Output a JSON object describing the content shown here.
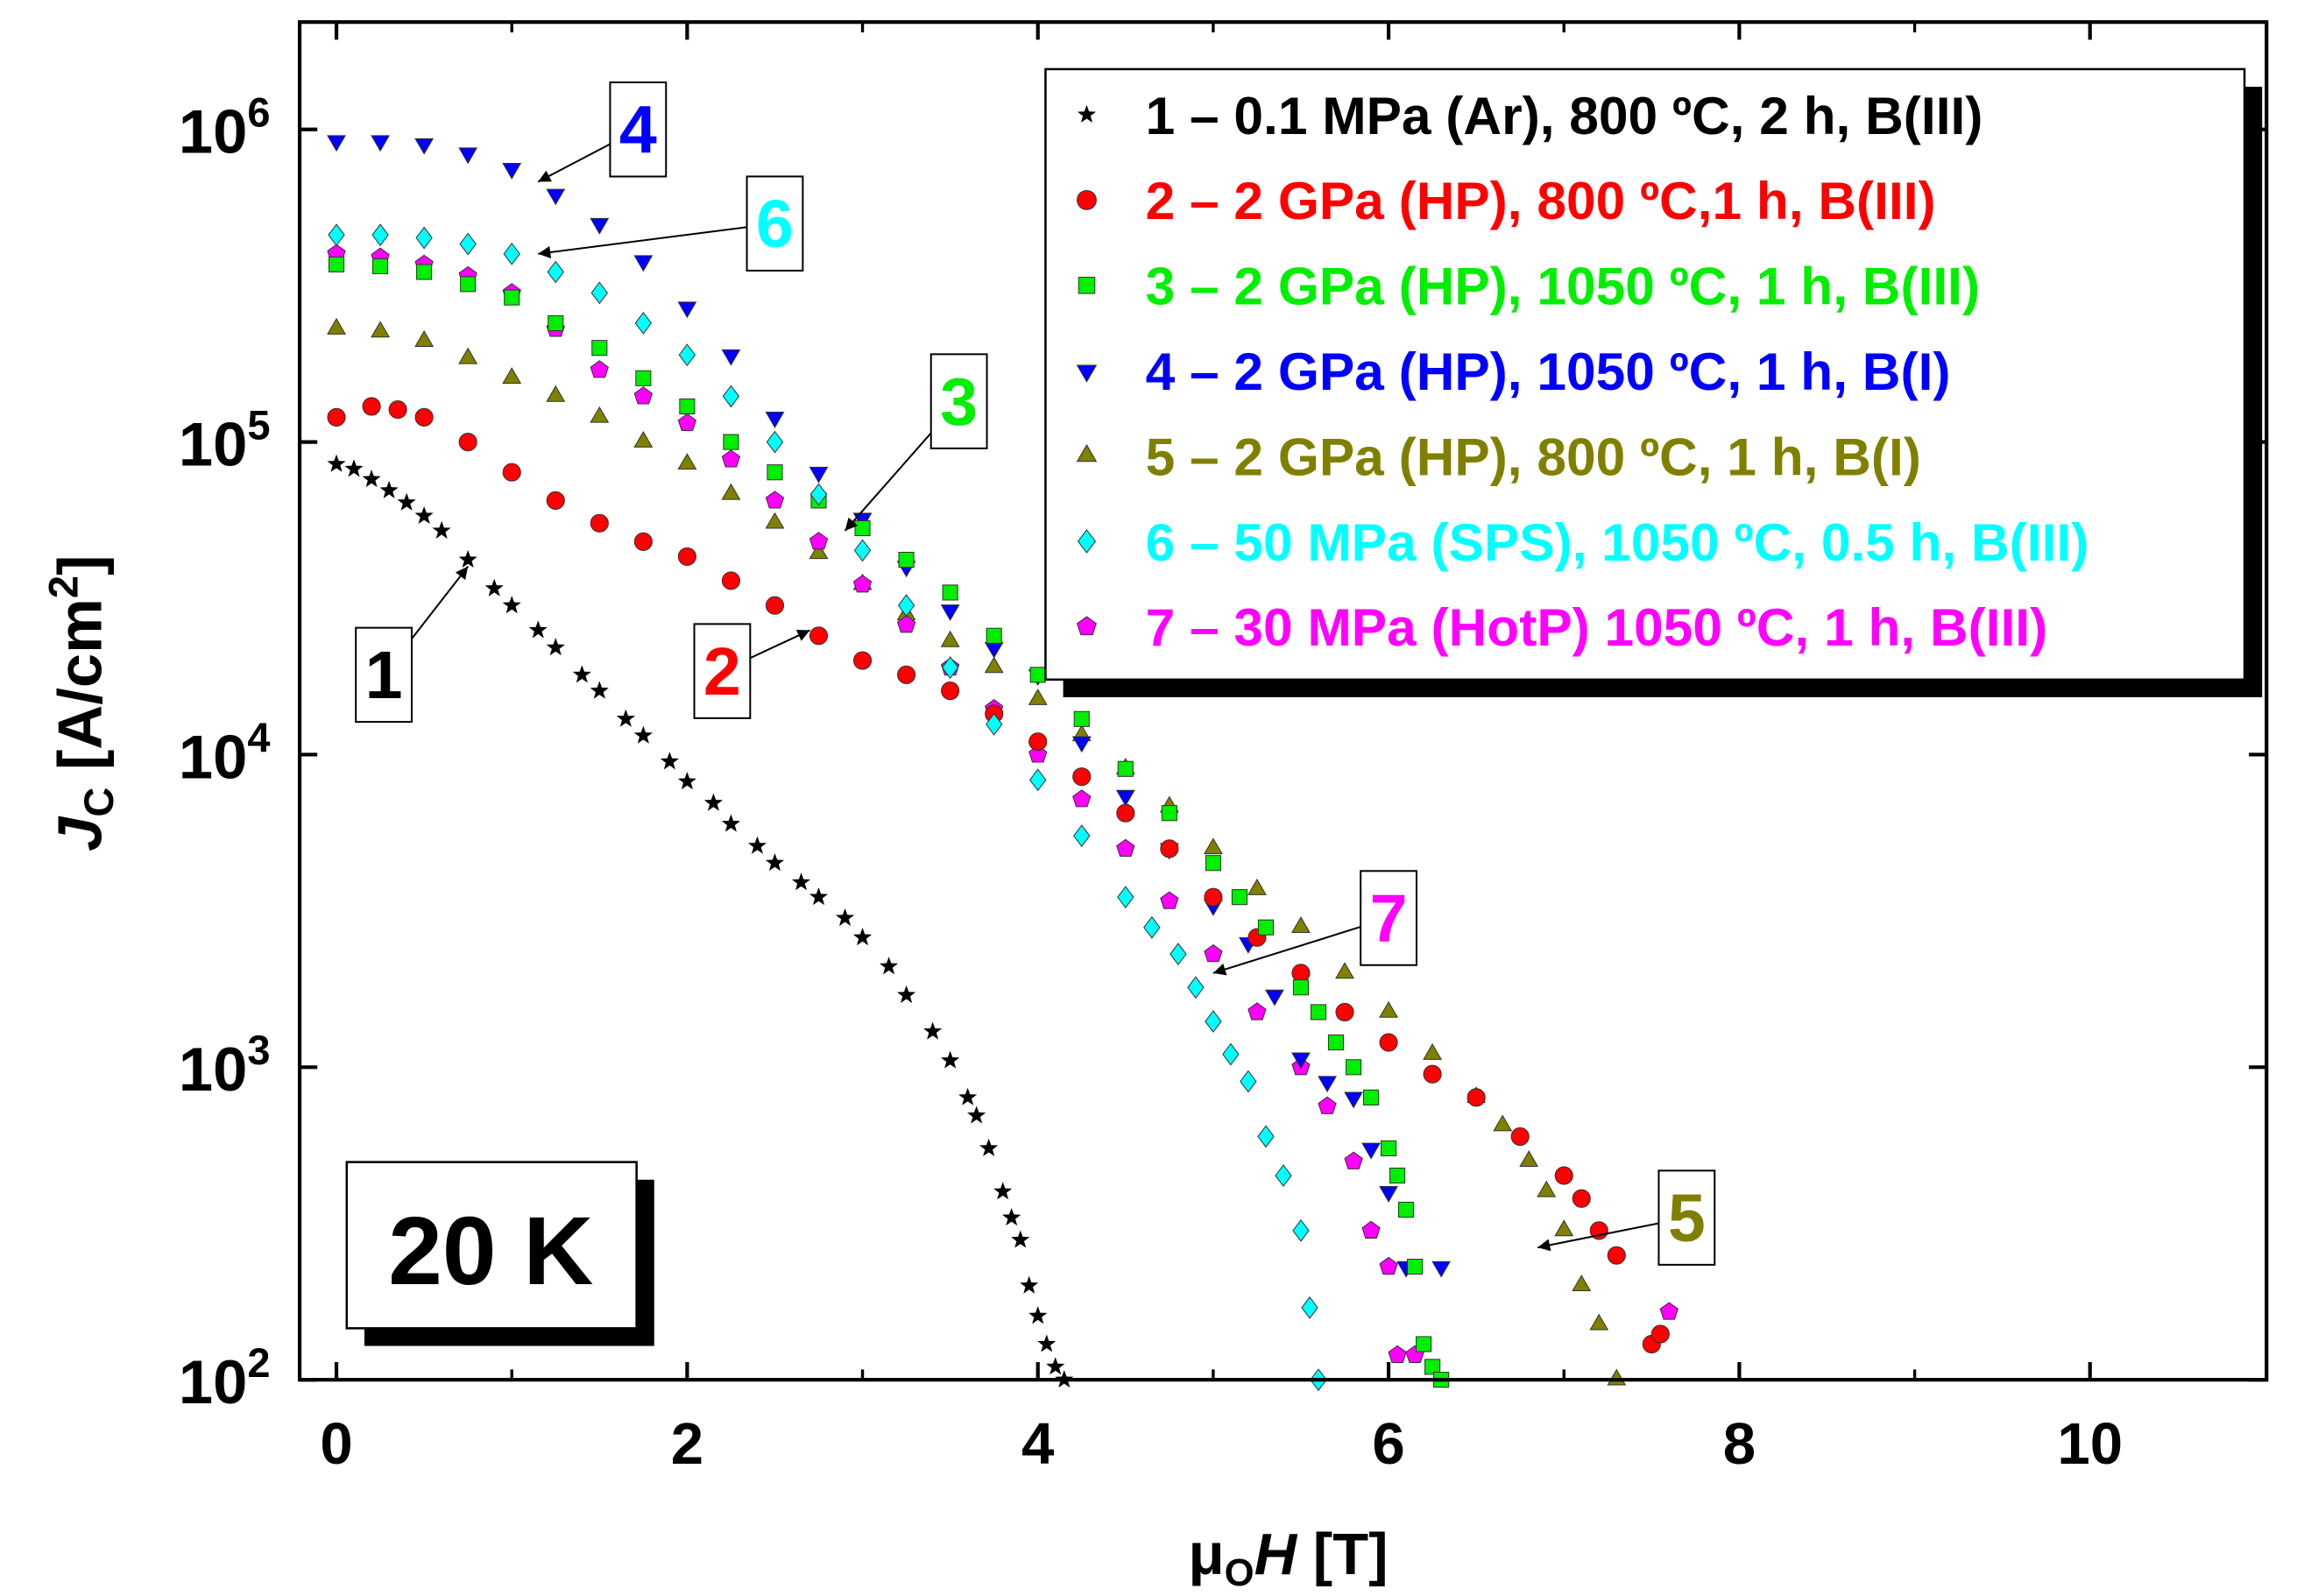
{
  "chart_data": {
    "type": "scatter",
    "xlabel": "μOH [T]",
    "xlabel_parts": {
      "mu": "μ",
      "sub": "O",
      "var": "H",
      "unit": " [T]"
    },
    "ylabel_parts": {
      "var": "J",
      "sub": "C",
      "unit": " [A/cm",
      "sup": "2",
      "close": "]"
    },
    "xlim": [
      -0.2,
      11
    ],
    "ylim_log10": [
      2,
      6.34
    ],
    "yscale": "log",
    "x_ticks": [
      "0",
      "2",
      "4",
      "6",
      "8",
      "10"
    ],
    "y_ticks": [
      {
        "base": "10",
        "exp": "2"
      },
      {
        "base": "10",
        "exp": "3"
      },
      {
        "base": "10",
        "exp": "4"
      },
      {
        "base": "10",
        "exp": "5"
      },
      {
        "base": "10",
        "exp": "6"
      }
    ],
    "temperature_label": "20 K",
    "legend_position": "top-right",
    "series": [
      {
        "id": "1",
        "name": "1 – 0.1 MPa (Ar), 800 ºC, 2 h, B(III)",
        "color": "#000000",
        "marker": "star",
        "points": [
          [
            0,
            85000
          ],
          [
            0.1,
            82000
          ],
          [
            0.2,
            76000
          ],
          [
            0.3,
            70000
          ],
          [
            0.4,
            64000
          ],
          [
            0.5,
            58000
          ],
          [
            0.6,
            52000
          ],
          [
            0.75,
            42000
          ],
          [
            0.9,
            34000
          ],
          [
            1,
            30000
          ],
          [
            1.15,
            25000
          ],
          [
            1.25,
            22000
          ],
          [
            1.4,
            18000
          ],
          [
            1.5,
            16000
          ],
          [
            1.65,
            13000
          ],
          [
            1.75,
            11500
          ],
          [
            1.9,
            9500
          ],
          [
            2,
            8200
          ],
          [
            2.15,
            7000
          ],
          [
            2.25,
            6000
          ],
          [
            2.4,
            5100
          ],
          [
            2.5,
            4500
          ],
          [
            2.65,
            3900
          ],
          [
            2.75,
            3500
          ],
          [
            2.9,
            3000
          ],
          [
            3,
            2600
          ],
          [
            3.15,
            2100
          ],
          [
            3.25,
            1700
          ],
          [
            3.4,
            1300
          ],
          [
            3.5,
            1050
          ],
          [
            3.6,
            800
          ],
          [
            3.65,
            700
          ],
          [
            3.72,
            550
          ],
          [
            3.8,
            400
          ],
          [
            3.85,
            330
          ],
          [
            3.9,
            280
          ],
          [
            3.95,
            200
          ],
          [
            4,
            160
          ],
          [
            4.05,
            130
          ],
          [
            4.1,
            110
          ],
          [
            4.15,
            100
          ]
        ]
      },
      {
        "id": "2",
        "name": "2 – 2 GPa (HP), 800 ºC,1 h, B(III)",
        "color": "#ff0000",
        "marker": "circle",
        "points": [
          [
            0,
            120000
          ],
          [
            0.2,
            130000
          ],
          [
            0.35,
            127000
          ],
          [
            0.5,
            120000
          ],
          [
            0.75,
            100000
          ],
          [
            1,
            80000
          ],
          [
            1.25,
            65000
          ],
          [
            1.5,
            55000
          ],
          [
            1.75,
            48000
          ],
          [
            2,
            43000
          ],
          [
            2.25,
            36000
          ],
          [
            2.5,
            30000
          ],
          [
            2.75,
            24000
          ],
          [
            3,
            20000
          ],
          [
            3.25,
            18000
          ],
          [
            3.5,
            16000
          ],
          [
            3.75,
            13500
          ],
          [
            4,
            11000
          ],
          [
            4.25,
            8500
          ],
          [
            4.5,
            6500
          ],
          [
            4.75,
            5000
          ],
          [
            5,
            3500
          ],
          [
            5.25,
            2600
          ],
          [
            5.5,
            2000
          ],
          [
            5.75,
            1500
          ],
          [
            6,
            1200
          ],
          [
            6.25,
            950
          ],
          [
            6.5,
            800
          ],
          [
            6.75,
            600
          ],
          [
            7,
            450
          ],
          [
            7.1,
            380
          ],
          [
            7.2,
            300
          ],
          [
            7.3,
            250
          ],
          [
            7.5,
            130
          ],
          [
            7.55,
            140
          ]
        ]
      },
      {
        "id": "3",
        "name": "3 – 2 GPa (HP), 1050 ºC, 1 h, B(III)",
        "color": "#00ee00",
        "marker": "square",
        "points": [
          [
            0,
            370000
          ],
          [
            0.25,
            365000
          ],
          [
            0.5,
            350000
          ],
          [
            0.75,
            320000
          ],
          [
            1,
            290000
          ],
          [
            1.25,
            240000
          ],
          [
            1.5,
            200000
          ],
          [
            1.75,
            160000
          ],
          [
            2,
            130000
          ],
          [
            2.25,
            100000
          ],
          [
            2.5,
            80000
          ],
          [
            2.75,
            65000
          ],
          [
            3,
            53000
          ],
          [
            3.25,
            42000
          ],
          [
            3.5,
            33000
          ],
          [
            3.75,
            24000
          ],
          [
            4,
            18000
          ],
          [
            4.25,
            13000
          ],
          [
            4.5,
            9000
          ],
          [
            4.75,
            6500
          ],
          [
            5,
            4500
          ],
          [
            5.15,
            3500
          ],
          [
            5.3,
            2800
          ],
          [
            5.5,
            1800
          ],
          [
            5.6,
            1500
          ],
          [
            5.7,
            1200
          ],
          [
            5.8,
            1000
          ],
          [
            5.9,
            800
          ],
          [
            6,
            550
          ],
          [
            6.05,
            450
          ],
          [
            6.1,
            350
          ],
          [
            6.15,
            230
          ],
          [
            6.2,
            130
          ],
          [
            6.25,
            110
          ],
          [
            6.3,
            100
          ]
        ]
      },
      {
        "id": "4",
        "name": "4 – 2 GPa (HP), 1050 ºC, 1 h, B(I)",
        "color": "#0000ff",
        "marker": "triangle-down",
        "points": [
          [
            0,
            920000
          ],
          [
            0.25,
            920000
          ],
          [
            0.5,
            900000
          ],
          [
            0.75,
            840000
          ],
          [
            1,
            750000
          ],
          [
            1.25,
            620000
          ],
          [
            1.5,
            500000
          ],
          [
            1.75,
            380000
          ],
          [
            2,
            270000
          ],
          [
            2.25,
            190000
          ],
          [
            2.5,
            120000
          ],
          [
            2.75,
            80000
          ],
          [
            3,
            57000
          ],
          [
            3.25,
            40000
          ],
          [
            3.5,
            29000
          ],
          [
            3.75,
            22000
          ],
          [
            4,
            18000
          ],
          [
            4.25,
            11000
          ],
          [
            4.5,
            7400
          ],
          [
            4.75,
            5000
          ],
          [
            5,
            3300
          ],
          [
            5.2,
            2500
          ],
          [
            5.35,
            1700
          ],
          [
            5.5,
            1070
          ],
          [
            5.65,
            900
          ],
          [
            5.8,
            800
          ],
          [
            5.9,
            550
          ],
          [
            6,
            400
          ],
          [
            6.1,
            230
          ],
          [
            6.3,
            230
          ]
        ]
      },
      {
        "id": "5",
        "name": "5 – 2 GPa (HP), 800 ºC, 1 h, B(I)",
        "color": "#808000",
        "marker": "triangle-up",
        "points": [
          [
            0,
            230000
          ],
          [
            0.25,
            225000
          ],
          [
            0.5,
            210000
          ],
          [
            0.75,
            185000
          ],
          [
            1,
            160000
          ],
          [
            1.25,
            140000
          ],
          [
            1.5,
            120000
          ],
          [
            1.75,
            100000
          ],
          [
            2,
            85000
          ],
          [
            2.25,
            68000
          ],
          [
            2.5,
            55000
          ],
          [
            2.75,
            44000
          ],
          [
            3,
            35000
          ],
          [
            3.25,
            28000
          ],
          [
            3.5,
            23000
          ],
          [
            3.75,
            19000
          ],
          [
            4,
            15000
          ],
          [
            4.25,
            11500
          ],
          [
            4.5,
            9000
          ],
          [
            4.75,
            6800
          ],
          [
            5,
            5000
          ],
          [
            5.25,
            3700
          ],
          [
            5.5,
            2800
          ],
          [
            5.75,
            2000
          ],
          [
            6,
            1500
          ],
          [
            6.25,
            1100
          ],
          [
            6.5,
            800
          ],
          [
            6.65,
            650
          ],
          [
            6.8,
            500
          ],
          [
            6.9,
            400
          ],
          [
            7,
            300
          ],
          [
            7.1,
            200
          ],
          [
            7.2,
            150
          ],
          [
            7.3,
            100
          ]
        ]
      },
      {
        "id": "6",
        "name": "6 – 50 MPa (SPS), 1050 ºC, 0.5 h, B(III)",
        "color": "#00ffff",
        "marker": "diamond",
        "points": [
          [
            0,
            460000
          ],
          [
            0.25,
            460000
          ],
          [
            0.5,
            450000
          ],
          [
            0.75,
            430000
          ],
          [
            1,
            400000
          ],
          [
            1.25,
            350000
          ],
          [
            1.5,
            300000
          ],
          [
            1.75,
            240000
          ],
          [
            2,
            190000
          ],
          [
            2.25,
            140000
          ],
          [
            2.5,
            100000
          ],
          [
            2.75,
            68000
          ],
          [
            3,
            45000
          ],
          [
            3.25,
            30000
          ],
          [
            3.5,
            19000
          ],
          [
            3.75,
            12500
          ],
          [
            4,
            8300
          ],
          [
            4.25,
            5500
          ],
          [
            4.5,
            3500
          ],
          [
            4.65,
            2800
          ],
          [
            4.8,
            2300
          ],
          [
            4.9,
            1800
          ],
          [
            5,
            1400
          ],
          [
            5.1,
            1100
          ],
          [
            5.2,
            900
          ],
          [
            5.3,
            600
          ],
          [
            5.4,
            450
          ],
          [
            5.5,
            300
          ],
          [
            5.55,
            170
          ],
          [
            5.6,
            100
          ]
        ]
      },
      {
        "id": "7",
        "name": "7 – 30 MPa (HotP)  1050 ºC, 1 h, B(III)",
        "color": "#ff00ff",
        "marker": "pentagon",
        "points": [
          [
            0,
            400000
          ],
          [
            0.25,
            390000
          ],
          [
            0.5,
            370000
          ],
          [
            0.75,
            340000
          ],
          [
            1,
            300000
          ],
          [
            1.25,
            230000
          ],
          [
            1.5,
            170000
          ],
          [
            1.75,
            140000
          ],
          [
            2,
            115000
          ],
          [
            2.25,
            88000
          ],
          [
            2.5,
            65000
          ],
          [
            2.75,
            48000
          ],
          [
            3,
            35000
          ],
          [
            3.25,
            26000
          ],
          [
            3.5,
            19000
          ],
          [
            3.75,
            14000
          ],
          [
            4,
            10000
          ],
          [
            4.25,
            7200
          ],
          [
            4.5,
            5000
          ],
          [
            4.75,
            3400
          ],
          [
            5,
            2300
          ],
          [
            5.25,
            1500
          ],
          [
            5.5,
            1000
          ],
          [
            5.65,
            750
          ],
          [
            5.8,
            500
          ],
          [
            5.9,
            300
          ],
          [
            6,
            230
          ],
          [
            6.05,
            120
          ],
          [
            6.15,
            120
          ],
          [
            7.6,
            165
          ]
        ]
      }
    ],
    "annotations": [
      {
        "label": "1",
        "series": "1"
      },
      {
        "label": "2",
        "series": "2"
      },
      {
        "label": "3",
        "series": "3"
      },
      {
        "label": "4",
        "series": "4"
      },
      {
        "label": "5",
        "series": "5"
      },
      {
        "label": "6",
        "series": "6"
      },
      {
        "label": "7",
        "series": "7"
      }
    ]
  }
}
